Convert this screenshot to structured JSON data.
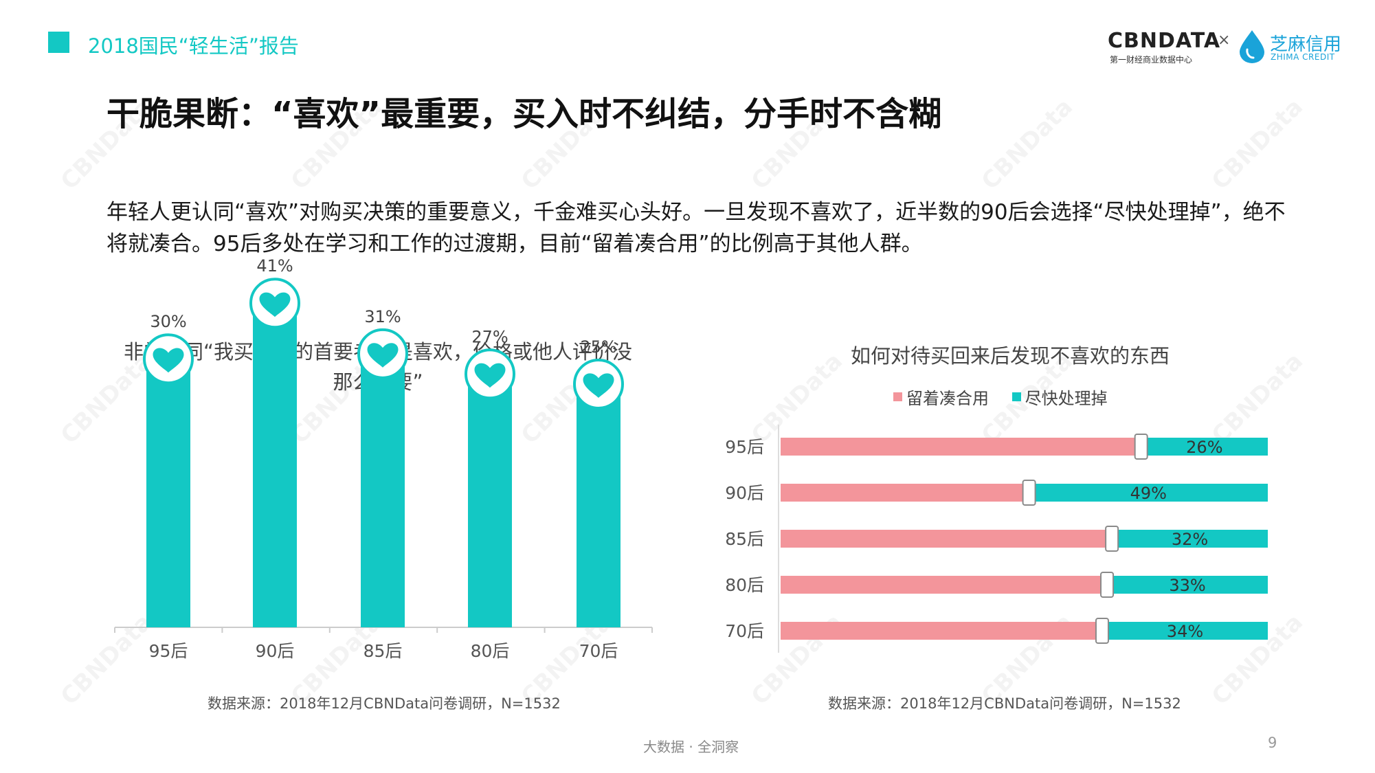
{
  "header": {
    "report_title": "2018国民“轻生活”报告",
    "logo_cbndata": "CBNDATA",
    "logo_cbndata_sub": "第一财经商业数据中心",
    "logo_times": "×",
    "logo_zhima": "芝麻信用",
    "logo_zhima_sub": "ZHIMA CREDIT"
  },
  "main_title": "干脆果断：“喜欢”最重要，买入时不纠结，分手时不含糊",
  "intro_text": "年轻人更认同“喜欢”对购买决策的重要意义，千金难买心头好。一旦发现不喜欢了，近半数的90后会选择“尽快处理掉”，绝不将就凑合。95后多处在学习和工作的过渡期，目前“留着凑合用”的比例高于其他人群。",
  "colors": {
    "teal": "#13c8c4",
    "pink": "#f3959b",
    "heart_fill": "#13c8c4"
  },
  "watermark": "CBNData",
  "chart_data": [
    {
      "type": "bar",
      "title": "非常认同“我买东西的首要考虑是喜欢，价格或他人评价没那么重要”",
      "categories": [
        "95后",
        "90后",
        "85后",
        "80后",
        "70后"
      ],
      "values": [
        30,
        41,
        31,
        27,
        25
      ],
      "value_labels": [
        "30%",
        "41%",
        "31%",
        "27%",
        "25%"
      ],
      "unit": "%",
      "color": "#13c8c4",
      "marker_icon": "heart-icon",
      "grid": false,
      "source": "数据来源：2018年12月CBNData问卷调研，N=1532"
    },
    {
      "type": "bar",
      "orientation": "horizontal",
      "stacked": true,
      "title": "如何对待买回来后发现不喜欢的东西",
      "categories": [
        "95后",
        "90后",
        "85后",
        "80后",
        "70后"
      ],
      "series": [
        {
          "name": "留着凑合用",
          "values": [
            74,
            51,
            68,
            67,
            66
          ],
          "color": "#f3959b"
        },
        {
          "name": "尽快处理掉",
          "values": [
            26,
            49,
            32,
            33,
            34
          ],
          "color": "#13c8c4"
        }
      ],
      "labels": [
        "26%",
        "49%",
        "32%",
        "33%",
        "34%"
      ],
      "legend": "top",
      "xlim": [
        0,
        100
      ],
      "grid": false,
      "source": "数据来源：2018年12月CBNData问卷调研，N=1532"
    }
  ],
  "footer": {
    "text": "大数据 · 全洞察",
    "page": "9"
  }
}
